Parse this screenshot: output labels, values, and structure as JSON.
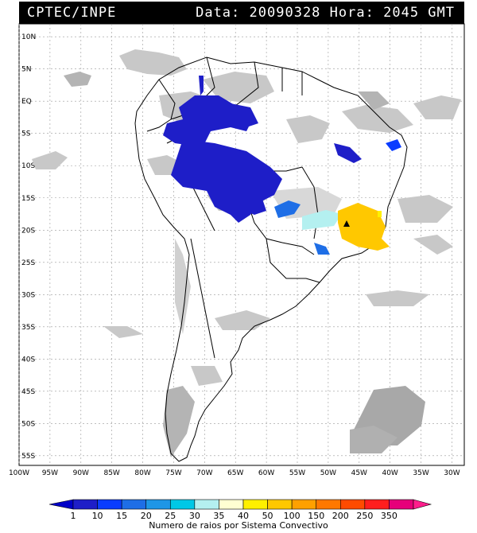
{
  "header": {
    "source": "CPTEC/INPE",
    "date_label": "Data:",
    "date": "20090328",
    "time_label": "Hora:",
    "time": "2045 GMT"
  },
  "map": {
    "lat_labels": [
      "10N",
      "5N",
      "EQ",
      "5S",
      "10S",
      "15S",
      "20S",
      "25S",
      "30S",
      "35S",
      "40S",
      "45S",
      "50S",
      "55S"
    ],
    "lon_labels": [
      "100W",
      "95W",
      "90W",
      "85W",
      "80W",
      "75W",
      "70W",
      "65W",
      "60W",
      "55W",
      "50W",
      "45W",
      "40W",
      "35W",
      "30W"
    ],
    "lat_range": [
      10,
      -55
    ],
    "lon_range": [
      -100,
      -28
    ]
  },
  "colorbar": {
    "title": "Numero de raios por Sistema Convectivo",
    "labels": [
      "1",
      "10",
      "15",
      "20",
      "25",
      "30",
      "35",
      "40",
      "50",
      "100",
      "150",
      "200",
      "250",
      "350"
    ],
    "colors": [
      "#1e1ec8",
      "#0a3cff",
      "#1e6ee6",
      "#1e96e6",
      "#00c8e6",
      "#b4f0f0",
      "#ffffd2",
      "#fff000",
      "#ffc800",
      "#ffa000",
      "#ff7800",
      "#ff4b00",
      "#ff1e1e",
      "#e6007a"
    ],
    "arrow_left_color": "#0000c8",
    "arrow_right_color": "#ff1e8c"
  },
  "colors": {
    "cloud_gray": "#c8c8c8",
    "dark_cloud": "#a0a0a0",
    "coast": "#000000"
  }
}
